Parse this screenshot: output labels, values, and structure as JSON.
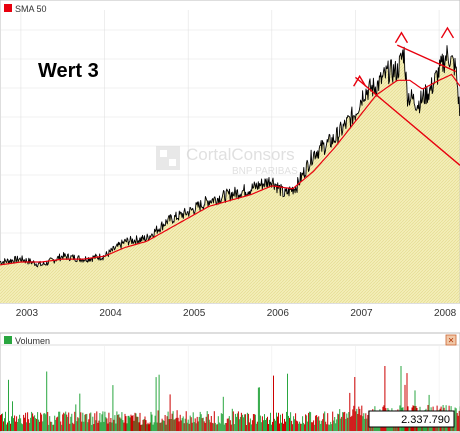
{
  "chart_data": [
    {
      "type": "line",
      "legend": [
        {
          "marker_color": "#e8000e",
          "label": "SMA 50"
        }
      ],
      "annotation": "Wert 3",
      "watermark": {
        "line1": "CortalConsors",
        "line2": "BNP PARIBAS"
      },
      "x_ticks": [
        "2003",
        "2004",
        "2005",
        "2006",
        "2007",
        "2008"
      ],
      "x_range": [
        2002.75,
        2008.25
      ],
      "y_axis_labels_shown": false,
      "grid": true,
      "price_series": {
        "x": [
          2002.75,
          2003.0,
          2003.25,
          2003.5,
          2003.75,
          2004.0,
          2004.25,
          2004.5,
          2004.75,
          2005.0,
          2005.25,
          2005.5,
          2005.75,
          2006.0,
          2006.15,
          2006.3,
          2006.5,
          2006.75,
          2007.0,
          2007.1,
          2007.25,
          2007.4,
          2007.5,
          2007.58,
          2007.62,
          2007.75,
          2007.9,
          2008.0,
          2008.1,
          2008.2,
          2008.25
        ],
        "y": [
          14,
          15,
          13,
          16,
          15,
          16,
          21,
          22,
          28,
          31,
          35,
          37,
          39,
          42,
          37,
          40,
          51,
          56,
          65,
          72,
          74,
          79,
          79,
          86,
          71,
          68,
          73,
          79,
          85,
          80,
          64
        ],
        "color": "#000000"
      },
      "sma50": {
        "x": [
          2002.75,
          2003.0,
          2003.25,
          2003.5,
          2003.75,
          2004.0,
          2004.25,
          2004.5,
          2004.75,
          2005.0,
          2005.25,
          2005.5,
          2005.75,
          2006.0,
          2006.25,
          2006.5,
          2006.75,
          2007.0,
          2007.25,
          2007.5,
          2007.65,
          2007.8,
          2008.0,
          2008.15,
          2008.25
        ],
        "y": [
          13,
          14,
          14,
          15,
          15,
          16,
          19,
          21,
          25,
          29,
          33,
          35,
          37,
          40,
          39,
          45,
          53,
          62,
          71,
          76,
          76,
          73,
          76,
          78,
          74
        ],
        "color": "#e8000e"
      },
      "trend_lines": [
        {
          "x": [
            2007.0,
            2008.25
          ],
          "y": [
            77,
            47
          ],
          "color": "#e8000e"
        },
        {
          "x": [
            2007.5,
            2008.2
          ],
          "y": [
            88,
            79
          ],
          "color": "#e8000e"
        }
      ],
      "peak_markers_at_x": [
        2007.05,
        2007.55,
        2008.1
      ],
      "area_fill": "#f0eaaa"
    },
    {
      "type": "bar",
      "legend": [
        {
          "marker_color": "#2aa640",
          "label": "Volumen"
        }
      ],
      "current_value": "2.337.790",
      "close_button": "×",
      "x_range": [
        2002.75,
        2008.25
      ],
      "values_note_units": "relative volume",
      "bar_colors": {
        "up": "#2aa640",
        "down": "#cc0000"
      }
    }
  ]
}
